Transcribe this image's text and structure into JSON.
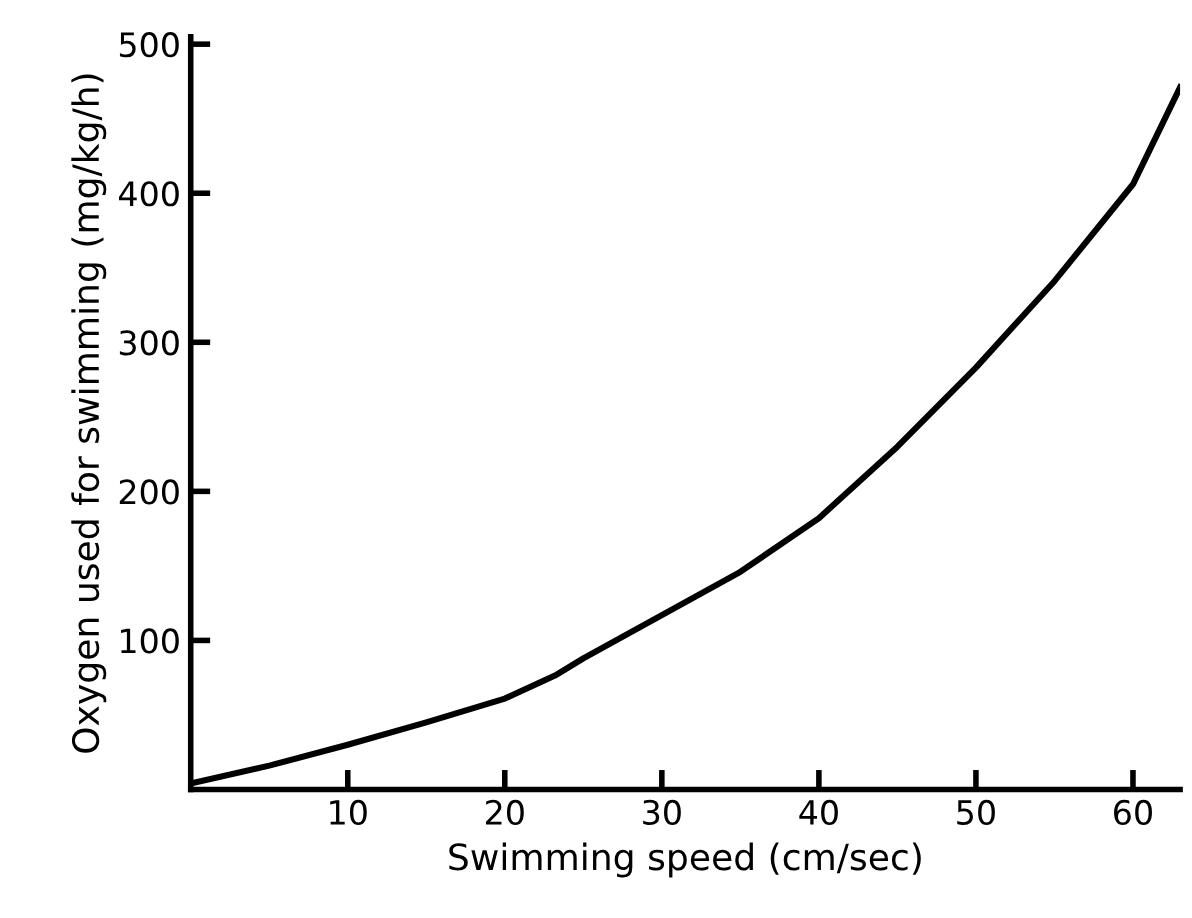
{
  "chart_data": {
    "type": "line",
    "xlabel": "Swimming speed (cm/sec)",
    "ylabel": "Oxygen used for swimming (mg/kg/h)",
    "series": [
      {
        "color": "#000000",
        "x": [
          0,
          5,
          10,
          15,
          20,
          23.3,
          25,
          30,
          35,
          40,
          45,
          50,
          55,
          60,
          63
        ],
        "values": [
          4,
          16,
          30,
          45,
          61,
          77,
          88,
          117,
          146,
          182,
          230,
          283,
          341,
          406,
          471
        ]
      }
    ],
    "xlim": [
      0,
      63
    ],
    "ylim": [
      0,
      505
    ],
    "xticks": [
      10,
      20,
      30,
      40,
      50,
      60
    ],
    "yticks": [
      100,
      200,
      300,
      400,
      500
    ],
    "grid": false,
    "legend": false,
    "marker": "none",
    "line_style": "solid"
  }
}
